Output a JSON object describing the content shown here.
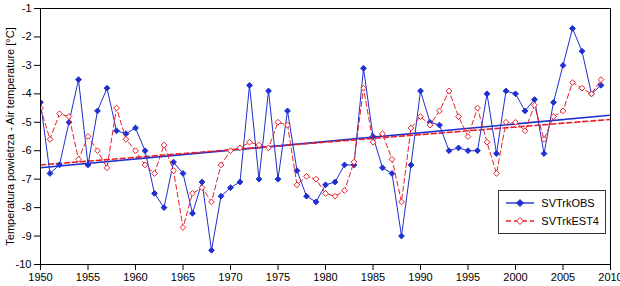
{
  "chart_data": {
    "type": "line",
    "y_label": "Temperatura powietrza - Air temperature [°C]",
    "x": [
      1950,
      1951,
      1952,
      1953,
      1954,
      1955,
      1956,
      1957,
      1958,
      1959,
      1960,
      1961,
      1962,
      1963,
      1964,
      1965,
      1966,
      1967,
      1968,
      1969,
      1970,
      1971,
      1972,
      1973,
      1974,
      1975,
      1976,
      1977,
      1978,
      1979,
      1980,
      1981,
      1982,
      1983,
      1984,
      1985,
      1986,
      1987,
      1988,
      1989,
      1990,
      1991,
      1992,
      1993,
      1994,
      1995,
      1996,
      1997,
      1998,
      1999,
      2000,
      2001,
      2002,
      2003,
      2004,
      2005,
      2006,
      2007,
      2008,
      2009
    ],
    "series": [
      {
        "name": "SVTrkOBS",
        "color": "#1f2fd0",
        "marker": "diamond",
        "line_style": "solid",
        "values": [
          -4.3,
          -6.8,
          -6.5,
          -5.0,
          -3.5,
          -6.5,
          -4.6,
          -3.8,
          -5.3,
          -5.4,
          -5.2,
          -6.0,
          -7.5,
          -8.0,
          -6.4,
          -6.8,
          -8.2,
          -7.1,
          -9.5,
          -7.6,
          -7.3,
          -7.1,
          -3.7,
          -7.0,
          -3.9,
          -7.0,
          -4.6,
          -6.7,
          -7.6,
          -7.8,
          -7.2,
          -7.1,
          -6.5,
          -6.5,
          -3.1,
          -5.5,
          -6.6,
          -6.8,
          -9.0,
          -6.5,
          -3.9,
          -5.0,
          -5.1,
          -6.0,
          -5.9,
          -6.0,
          -6.0,
          -4.0,
          -6.1,
          -3.9,
          -4.0,
          -4.6,
          -4.2,
          -6.1,
          -4.3,
          -3.0,
          -1.7,
          -2.5,
          -4.0,
          -3.7
        ]
      },
      {
        "name": "SVTrkEST4",
        "color": "#e8202a",
        "marker": "open-diamond",
        "line_style": "dashed",
        "values": [
          -4.5,
          -5.6,
          -4.7,
          -4.8,
          -6.3,
          -5.5,
          -6.0,
          -6.6,
          -4.5,
          -5.6,
          -6.0,
          -6.5,
          -6.8,
          -5.8,
          -6.7,
          -8.7,
          -7.5,
          -7.3,
          -7.8,
          -6.5,
          -6.0,
          -5.9,
          -5.7,
          -5.8,
          -5.9,
          -5.0,
          -5.1,
          -7.2,
          -6.9,
          -7.0,
          -7.5,
          -7.6,
          -7.4,
          -6.4,
          -3.8,
          -5.7,
          -5.4,
          -6.3,
          -7.8,
          -5.2,
          -4.8,
          -5.1,
          -4.6,
          -3.9,
          -4.8,
          -5.5,
          -4.5,
          -5.7,
          -6.8,
          -5.0,
          -5.0,
          -5.3,
          -4.4,
          -5.6,
          -4.8,
          -4.6,
          -3.6,
          -3.8,
          -4.0,
          -3.5
        ]
      }
    ],
    "trends": [
      {
        "series": "SVTrkOBS",
        "x": [
          1950,
          2010
        ],
        "values": [
          -6.6,
          -4.75
        ]
      },
      {
        "series": "SVTrkEST4",
        "x": [
          1950,
          2010
        ],
        "values": [
          -6.5,
          -4.9
        ]
      }
    ],
    "xlim": [
      1950,
      2010
    ],
    "xticks": [
      1950,
      1955,
      1960,
      1965,
      1970,
      1975,
      1980,
      1985,
      1990,
      1995,
      2000,
      2005,
      2010
    ],
    "ylim": [
      -10,
      -1
    ],
    "yticks": [
      -10,
      -9,
      -8,
      -7,
      -6,
      -5,
      -4,
      -3,
      -2,
      -1
    ],
    "grid": false,
    "legend": "lower right"
  }
}
